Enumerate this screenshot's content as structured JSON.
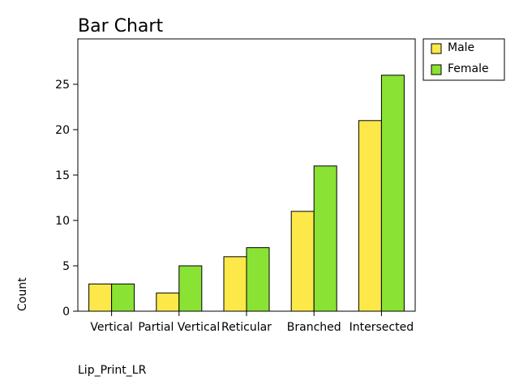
{
  "chart_data": {
    "type": "bar",
    "title": "Bar Chart",
    "x_label": "Lip_Print_LR",
    "y_label": "Count",
    "categories": [
      "Vertical",
      "Partial Vertical",
      "Reticular",
      "Branched",
      "Intersected"
    ],
    "series": [
      {
        "name": "Male",
        "color": "#fde84a",
        "values": [
          3,
          2,
          6,
          11,
          21
        ]
      },
      {
        "name": "Female",
        "color": "#8ae234",
        "values": [
          3,
          5,
          7,
          16,
          26
        ]
      }
    ],
    "ylim": [
      0,
      30
    ],
    "yticks": [
      0,
      5,
      10,
      15,
      20,
      25
    ],
    "legend": "outside-top-right"
  }
}
